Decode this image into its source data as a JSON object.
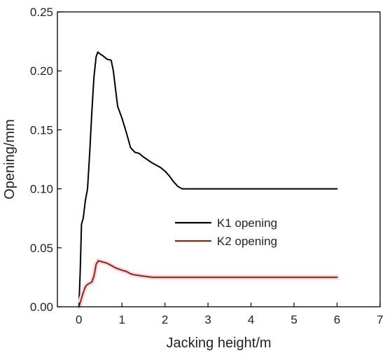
{
  "chart_data": {
    "type": "line",
    "title": "",
    "xlabel": "Jacking height/m",
    "ylabel": "Opening/mm",
    "xlim": [
      -0.5,
      7
    ],
    "ylim": [
      0,
      0.25
    ],
    "x_ticks": [
      0,
      1,
      2,
      3,
      4,
      5,
      6,
      7
    ],
    "x_tick_labels": [
      "0",
      "1",
      "2",
      "3",
      "4",
      "5",
      "6",
      "7"
    ],
    "y_ticks": [
      0,
      0.05,
      0.1,
      0.15,
      0.2,
      0.25
    ],
    "y_tick_labels": [
      "0.00",
      "0.05",
      "0.10",
      "0.15",
      "0.20",
      "0.25"
    ],
    "grid": false,
    "legend_position": "center-right",
    "series": [
      {
        "name": "K1 opening",
        "color": "#000000",
        "points": [
          [
            0.0,
            0.0
          ],
          [
            0.03,
            0.03
          ],
          [
            0.06,
            0.07
          ],
          [
            0.1,
            0.075
          ],
          [
            0.15,
            0.09
          ],
          [
            0.2,
            0.1
          ],
          [
            0.25,
            0.13
          ],
          [
            0.3,
            0.165
          ],
          [
            0.35,
            0.195
          ],
          [
            0.4,
            0.212
          ],
          [
            0.44,
            0.216
          ],
          [
            0.5,
            0.214
          ],
          [
            0.55,
            0.213
          ],
          [
            0.65,
            0.21
          ],
          [
            0.75,
            0.209
          ],
          [
            0.8,
            0.2
          ],
          [
            0.85,
            0.185
          ],
          [
            0.9,
            0.17
          ],
          [
            1.0,
            0.16
          ],
          [
            1.1,
            0.148
          ],
          [
            1.2,
            0.135
          ],
          [
            1.3,
            0.131
          ],
          [
            1.4,
            0.13
          ],
          [
            1.5,
            0.127
          ],
          [
            1.7,
            0.122
          ],
          [
            1.9,
            0.118
          ],
          [
            2.0,
            0.115
          ],
          [
            2.1,
            0.111
          ],
          [
            2.2,
            0.106
          ],
          [
            2.3,
            0.102
          ],
          [
            2.4,
            0.1
          ],
          [
            3.0,
            0.1
          ],
          [
            4.0,
            0.1
          ],
          [
            5.0,
            0.1
          ],
          [
            6.0,
            0.1
          ]
        ]
      },
      {
        "name": "K2 opening",
        "color": "#8b2a0a",
        "halo_color": "#fcd9e4",
        "points": [
          [
            0.0,
            0.0
          ],
          [
            0.05,
            0.006
          ],
          [
            0.1,
            0.012
          ],
          [
            0.15,
            0.017
          ],
          [
            0.2,
            0.019
          ],
          [
            0.25,
            0.02
          ],
          [
            0.3,
            0.021
          ],
          [
            0.35,
            0.026
          ],
          [
            0.4,
            0.036
          ],
          [
            0.45,
            0.039
          ],
          [
            0.55,
            0.038
          ],
          [
            0.65,
            0.037
          ],
          [
            0.75,
            0.035
          ],
          [
            0.85,
            0.033
          ],
          [
            1.0,
            0.031
          ],
          [
            1.1,
            0.03
          ],
          [
            1.2,
            0.028
          ],
          [
            1.3,
            0.027
          ],
          [
            1.5,
            0.026
          ],
          [
            1.7,
            0.025
          ],
          [
            2.0,
            0.025
          ],
          [
            3.0,
            0.025
          ],
          [
            4.0,
            0.025
          ],
          [
            5.0,
            0.025
          ],
          [
            6.0,
            0.025
          ]
        ]
      }
    ]
  }
}
